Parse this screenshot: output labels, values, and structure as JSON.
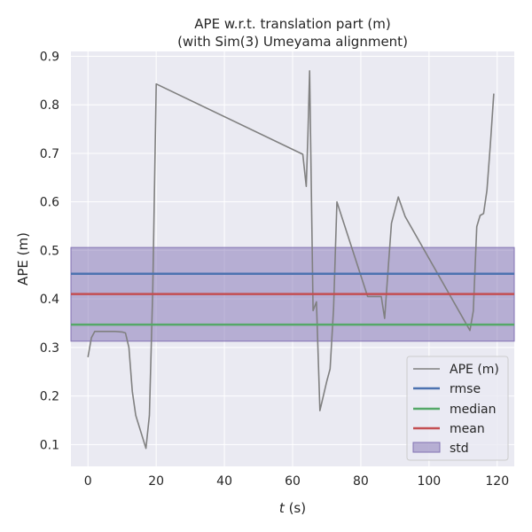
{
  "chart_data": {
    "type": "line",
    "title": "APE w.r.t. translation part (m)",
    "subtitle": "(with Sim(3) Umeyama alignment)",
    "xlabel_italic": "t",
    "xlabel_unit": "(s)",
    "ylabel": "APE (m)",
    "xlim": [
      -5,
      125
    ],
    "ylim": [
      0.055,
      0.91
    ],
    "xticks": [
      0,
      20,
      40,
      60,
      80,
      100,
      120
    ],
    "yticks": [
      0.1,
      0.2,
      0.3,
      0.4,
      0.5,
      0.6,
      0.7,
      0.8,
      0.9
    ],
    "grid": true,
    "legend_position": "lower-right",
    "series": [
      {
        "name": "APE (m)",
        "color": "#808080",
        "x": [
          0,
          1,
          2,
          3,
          5,
          8,
          10,
          11,
          12,
          13,
          14,
          17,
          18,
          19,
          20,
          63,
          64,
          64.5,
          65,
          66,
          67,
          68,
          70,
          71,
          72,
          73,
          82,
          86,
          87,
          88,
          89,
          91,
          93,
          112,
          113,
          114,
          115,
          116,
          117,
          118,
          119
        ],
        "y": [
          0.28,
          0.32,
          0.333,
          0.333,
          0.333,
          0.333,
          0.332,
          0.33,
          0.3,
          0.21,
          0.16,
          0.092,
          0.16,
          0.42,
          0.843,
          0.698,
          0.632,
          0.74,
          0.87,
          0.376,
          0.394,
          0.17,
          0.23,
          0.256,
          0.38,
          0.6,
          0.405,
          0.405,
          0.36,
          0.46,
          0.556,
          0.61,
          0.57,
          0.335,
          0.375,
          0.549,
          0.572,
          0.576,
          0.624,
          0.72,
          0.823
        ]
      }
    ],
    "stats": [
      {
        "name": "rmse",
        "value": 0.452,
        "color": "#4c72b0"
      },
      {
        "name": "median",
        "value": 0.347,
        "color": "#55a868"
      },
      {
        "name": "mean",
        "value": 0.41,
        "color": "#c44e52"
      }
    ],
    "std": {
      "name": "std",
      "low": 0.313,
      "high": 0.506,
      "color": "#8172b3"
    }
  }
}
